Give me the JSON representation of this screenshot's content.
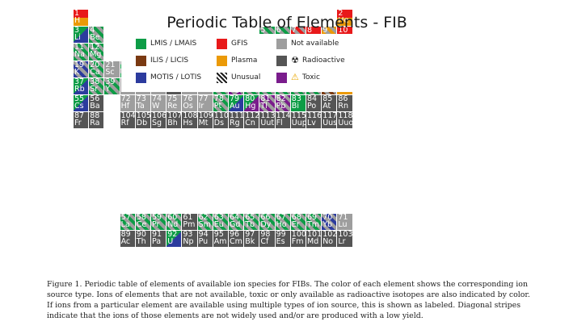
{
  "title": "Periodic Table of Elements - FIB sources",
  "legend": [
    {
      "label": "LMIS / LMAIS",
      "color": "#0d9c46",
      "icon": "green-square"
    },
    {
      "label": "GFIS",
      "color": "#e8191a",
      "icon": "red-square"
    },
    {
      "label": "Not available",
      "color": "#9e9e9e",
      "icon": "gray-square"
    },
    {
      "label": "ILIS / LICIS",
      "color": "#7a3a12",
      "icon": "brown-square"
    },
    {
      "label": "Plasma",
      "color": "#eb9a08",
      "icon": "orange-square"
    },
    {
      "label": "Radioactive",
      "color": "#555555",
      "icon": "radioactive-icon"
    },
    {
      "label": "MOTIS / LOTIS",
      "color": "#2c3b9e",
      "icon": "blue-square"
    },
    {
      "label": "Unusual",
      "color": "#1c1c1c",
      "icon": "striped-square"
    },
    {
      "label": "Toxic",
      "color": "#7a1c8c",
      "icon": "toxic-icon"
    }
  ],
  "elements": [
    [
      "1",
      "H",
      "mix-gf-pl",
      1,
      1
    ],
    [
      "2",
      "He",
      "mix-gf-pl",
      1,
      18
    ],
    [
      "3",
      "Li",
      "mix-lm-mo",
      2,
      1
    ],
    [
      "4",
      "Be",
      "stlm",
      2,
      2
    ],
    [
      "5",
      "B",
      "stlm",
      2,
      13
    ],
    [
      "6",
      "C",
      "stlm",
      2,
      14
    ],
    [
      "7",
      "N",
      "stgf",
      2,
      15
    ],
    [
      "8",
      "O",
      "mix-gf-pl",
      2,
      16
    ],
    [
      "9",
      "F",
      "stpl",
      2,
      17
    ],
    [
      "10",
      "Ne",
      "mix-gf-pl",
      2,
      18
    ],
    [
      "11",
      "Na",
      "stlm",
      3,
      1
    ],
    [
      "12",
      "Mg",
      "stlm",
      3,
      2
    ],
    [
      "13",
      "Al",
      "mix-lm-mo",
      3,
      13
    ],
    [
      "14",
      "Si",
      "stlm",
      3,
      14
    ],
    [
      "15",
      "P",
      "stlm",
      3,
      15
    ],
    [
      "16",
      "S",
      "stlm",
      3,
      16
    ],
    [
      "17",
      "Cl",
      "stil",
      3,
      17
    ],
    [
      "18",
      "Ar",
      "pl",
      3,
      18
    ],
    [
      "19",
      "K",
      "stmo",
      4,
      1
    ],
    [
      "20",
      "Ca",
      "stlm",
      4,
      2
    ],
    [
      "21",
      "Sc",
      "na",
      4,
      3
    ],
    [
      "22",
      "Ti",
      "stlm",
      4,
      4
    ],
    [
      "23",
      "V",
      "stlm",
      4,
      5
    ],
    [
      "24",
      "Cr",
      "mix-lm-mo",
      4,
      6
    ],
    [
      "25",
      "Mn",
      "stlm",
      4,
      7
    ],
    [
      "26",
      "Fe",
      "stlm",
      4,
      8
    ],
    [
      "27",
      "Co",
      "stlm",
      4,
      9
    ],
    [
      "28",
      "Ni",
      "stlm",
      4,
      10
    ],
    [
      "29",
      "Cu",
      "stlm",
      4,
      11
    ],
    [
      "30",
      "Zn",
      "stlm",
      4,
      12
    ],
    [
      "31",
      "Ga",
      "mix-lm-il",
      4,
      13
    ],
    [
      "32",
      "Ge",
      "lm",
      4,
      14
    ],
    [
      "33",
      "As",
      "sttx",
      4,
      15
    ],
    [
      "34",
      "Se",
      "stlm",
      4,
      16
    ],
    [
      "35",
      "Br",
      "stil",
      4,
      17
    ],
    [
      "36",
      "Kr",
      "mix-gf-pl",
      4,
      18
    ],
    [
      "37",
      "Rb",
      "mix-lm-mo",
      5,
      1
    ],
    [
      "38",
      "Sr",
      "stlm",
      5,
      2
    ],
    [
      "39",
      "Y",
      "stlm",
      5,
      3
    ],
    [
      "40",
      "Zr",
      "na",
      5,
      4
    ],
    [
      "41",
      "Nb",
      "na",
      5,
      5
    ],
    [
      "42",
      "Mo",
      "na",
      5,
      6
    ],
    [
      "43",
      "Tc",
      "ra",
      5,
      7
    ],
    [
      "44",
      "Ru",
      "na",
      5,
      8
    ],
    [
      "45",
      "Rh",
      "na",
      5,
      9
    ],
    [
      "46",
      "Pd",
      "stlm",
      5,
      10
    ],
    [
      "47",
      "Ag",
      "sttx",
      5,
      11
    ],
    [
      "48",
      "Cd",
      "stlm",
      5,
      12
    ],
    [
      "49",
      "In",
      "stlm",
      5,
      13
    ],
    [
      "50",
      "Sn",
      "stlm",
      5,
      14
    ],
    [
      "51",
      "Sb",
      "stlm",
      5,
      15
    ],
    [
      "52",
      "Te",
      "stlm",
      5,
      16
    ],
    [
      "53",
      "I",
      "stil",
      5,
      17
    ],
    [
      "54",
      "Xe",
      "mix-gf-pl",
      5,
      18
    ],
    [
      "55",
      "Cs",
      "mix-lm-mo",
      6,
      1
    ],
    [
      "56",
      "Ba",
      "ra",
      6,
      2
    ],
    [
      "72",
      "Hf",
      "na",
      6,
      4
    ],
    [
      "73",
      "Ta",
      "na",
      6,
      5
    ],
    [
      "74",
      "W",
      "na",
      6,
      6
    ],
    [
      "75",
      "Re",
      "na",
      6,
      7
    ],
    [
      "76",
      "Os",
      "na",
      6,
      8
    ],
    [
      "77",
      "Ir",
      "na",
      6,
      9
    ],
    [
      "78",
      "Pt",
      "stlm",
      6,
      10
    ],
    [
      "79",
      "Au",
      "mix-lm-mo",
      6,
      11
    ],
    [
      "80",
      "Hg",
      "mix-lm-tx",
      6,
      12
    ],
    [
      "81",
      "Tl",
      "sttx",
      6,
      13
    ],
    [
      "82",
      "Pb",
      "sttx",
      6,
      14
    ],
    [
      "83",
      "Bi",
      "lm",
      6,
      15
    ],
    [
      "84",
      "Po",
      "ra",
      6,
      16
    ],
    [
      "85",
      "At",
      "ra",
      6,
      17
    ],
    [
      "86",
      "Rn",
      "ra",
      6,
      18
    ],
    [
      "87",
      "Fr",
      "ra",
      7,
      1
    ],
    [
      "88",
      "Ra",
      "ra",
      7,
      2
    ],
    [
      "104",
      "Rf",
      "ra",
      7,
      4
    ],
    [
      "105",
      "Db",
      "ra",
      7,
      5
    ],
    [
      "106",
      "Sg",
      "ra",
      7,
      6
    ],
    [
      "107",
      "Bh",
      "ra",
      7,
      7
    ],
    [
      "108",
      "Hs",
      "ra",
      7,
      8
    ],
    [
      "109",
      "Mt",
      "ra",
      7,
      9
    ],
    [
      "110",
      "Ds",
      "ra",
      7,
      10
    ],
    [
      "111",
      "Rg",
      "ra",
      7,
      11
    ],
    [
      "112",
      "Cn",
      "ra",
      7,
      12
    ],
    [
      "113",
      "Uut",
      "ra",
      7,
      13
    ],
    [
      "114",
      "Fl",
      "ra",
      7,
      14
    ],
    [
      "115",
      "Uup",
      "ra",
      7,
      15
    ],
    [
      "116",
      "Lv",
      "ra",
      7,
      16
    ],
    [
      "117",
      "Uus",
      "ra",
      7,
      17
    ],
    [
      "118",
      "Uuo",
      "ra",
      7,
      18
    ],
    [
      "57",
      "La",
      "stlm",
      9,
      4
    ],
    [
      "58",
      "Ce",
      "stlm",
      9,
      5
    ],
    [
      "59",
      "Pr",
      "stlm",
      9,
      6
    ],
    [
      "60",
      "Nd",
      "stlm",
      9,
      7
    ],
    [
      "61",
      "Pm",
      "ra",
      9,
      8
    ],
    [
      "62",
      "Sm",
      "stlm",
      9,
      9
    ],
    [
      "63",
      "Eu",
      "stlm",
      9,
      10
    ],
    [
      "64",
      "Gd",
      "stlm",
      9,
      11
    ],
    [
      "65",
      "Tb",
      "stlm",
      9,
      12
    ],
    [
      "66",
      "Dy",
      "stlm",
      9,
      13
    ],
    [
      "67",
      "Ho",
      "stlm",
      9,
      14
    ],
    [
      "68",
      "Er",
      "stlm",
      9,
      15
    ],
    [
      "69",
      "Tm",
      "stlm",
      9,
      16
    ],
    [
      "70",
      "Yb",
      "stmo",
      9,
      17
    ],
    [
      "71",
      "Lu",
      "na",
      9,
      18
    ],
    [
      "89",
      "Ac",
      "ra",
      10,
      4
    ],
    [
      "90",
      "Th",
      "ra",
      10,
      5
    ],
    [
      "91",
      "Pa",
      "ra",
      10,
      6
    ],
    [
      "92",
      "U",
      "mix-lm-mo",
      10,
      7
    ],
    [
      "93",
      "Np",
      "ra",
      10,
      8
    ],
    [
      "94",
      "Pu",
      "ra",
      10,
      9
    ],
    [
      "95",
      "Am",
      "ra",
      10,
      10
    ],
    [
      "96",
      "Cm",
      "ra",
      10,
      11
    ],
    [
      "97",
      "Bk",
      "ra",
      10,
      12
    ],
    [
      "98",
      "Cf",
      "ra",
      10,
      13
    ],
    [
      "99",
      "Es",
      "ra",
      10,
      14
    ],
    [
      "100",
      "Fm",
      "ra",
      10,
      15
    ],
    [
      "101",
      "Md",
      "ra",
      10,
      16
    ],
    [
      "102",
      "No",
      "ra",
      10,
      17
    ],
    [
      "103",
      "Lr",
      "ra",
      10,
      18
    ]
  ],
  "caption": [
    "Figure 1. Periodic table of elements of available ion species for FIBs. The color of each element shows the corresponding ion",
    "source type. Ions of elements that are not available, toxic or only available as radioactive isotopes are also indicated by color.",
    "If ions from a particular element are available using multiple types of ion source, this is shown as labeled. Diagonal stripes",
    "indicate that the ions of those elements are not widely used and/or are produced with a low yield."
  ]
}
